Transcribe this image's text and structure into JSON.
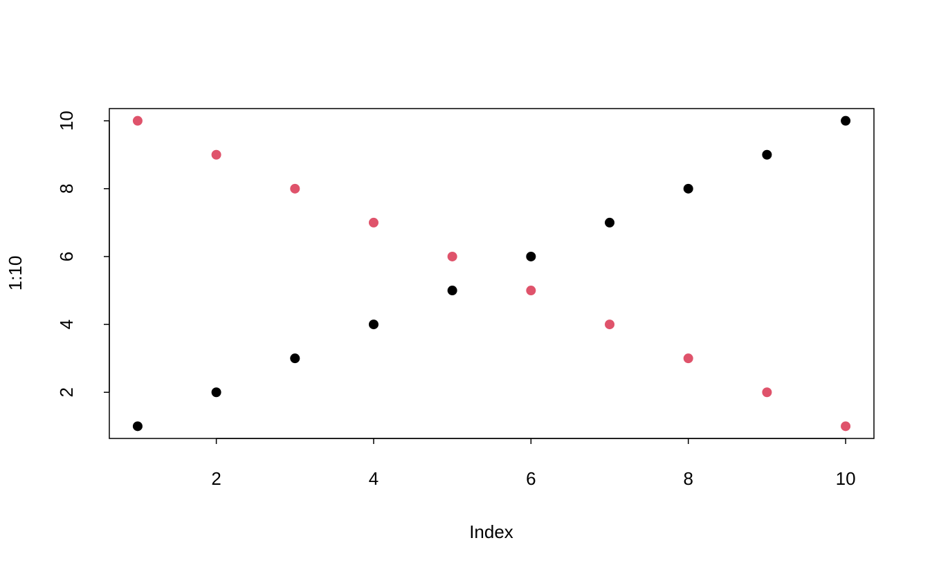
{
  "chart_data": {
    "type": "scatter",
    "x_label": "Index",
    "y_label": "1:10",
    "x": [
      1,
      2,
      3,
      4,
      5,
      6,
      7,
      8,
      9,
      10
    ],
    "series": [
      {
        "color": "#000000",
        "values": [
          1,
          2,
          3,
          4,
          5,
          6,
          7,
          8,
          9,
          10
        ]
      },
      {
        "color": "#df536b",
        "values": [
          10,
          9,
          8,
          7,
          6,
          5,
          4,
          3,
          2,
          1
        ]
      }
    ],
    "xlim": [
      0.64,
      10.36
    ],
    "ylim": [
      0.64,
      10.36
    ],
    "xticks": [
      2,
      4,
      6,
      8,
      10
    ],
    "yticks": [
      2,
      4,
      6,
      8,
      10
    ],
    "grid": false
  }
}
